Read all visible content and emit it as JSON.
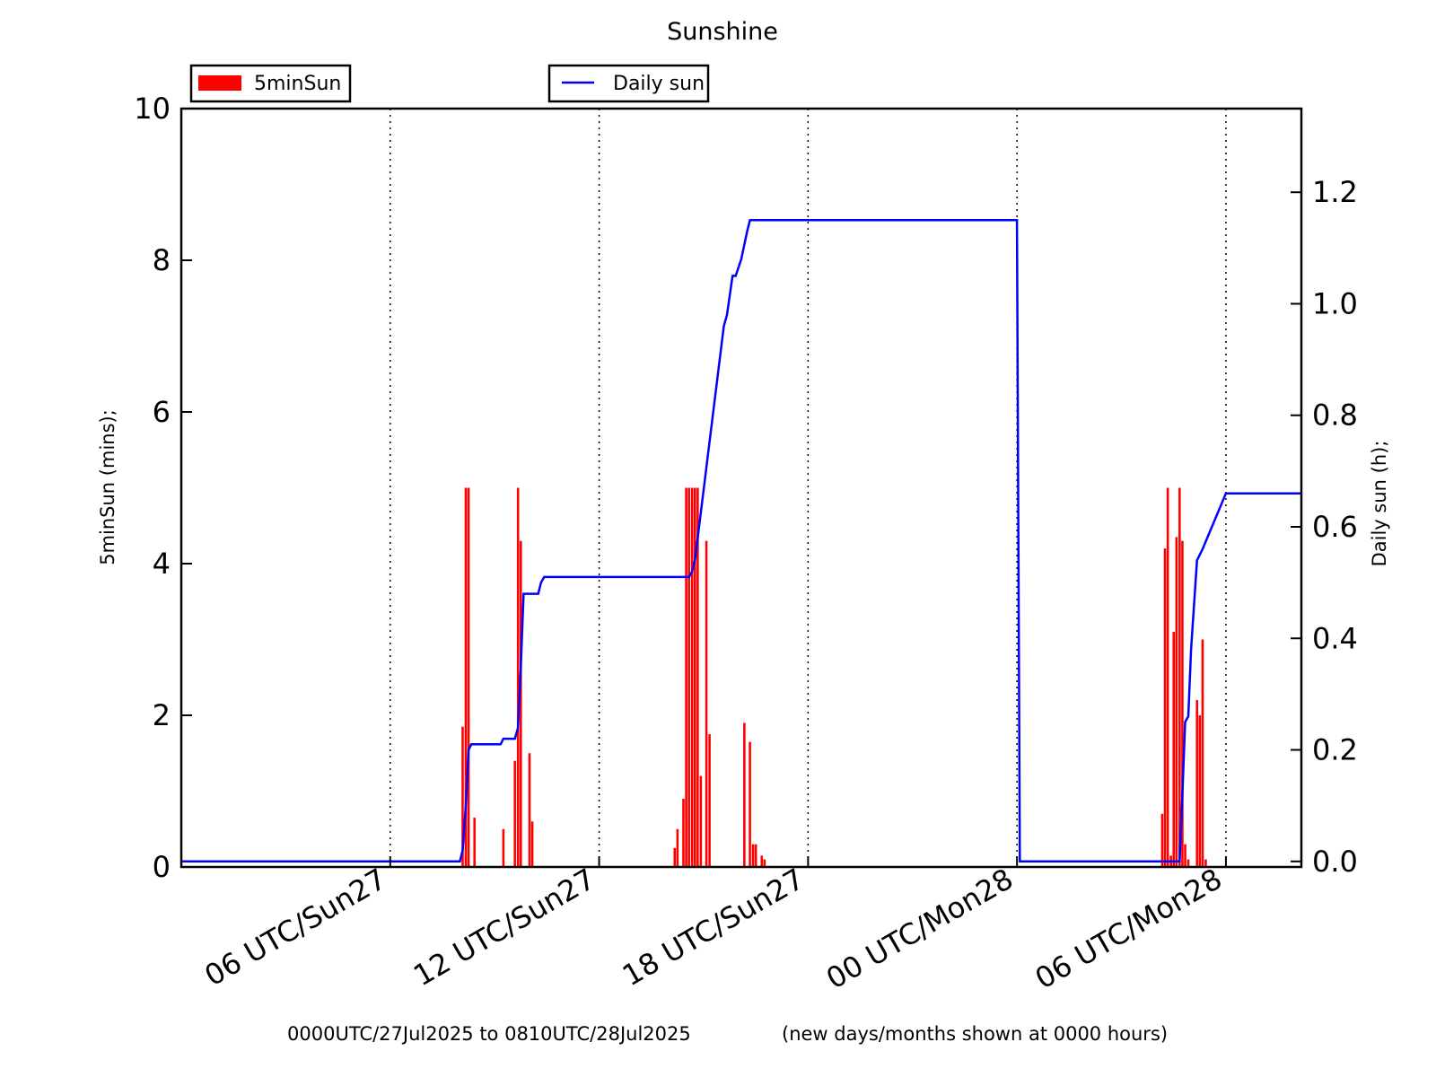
{
  "chart_data": {
    "type": "bar",
    "title": "Sunshine",
    "x_time_range": [
      "0000UTC/27Jul2025",
      "0810UTC/28Jul2025"
    ],
    "x_ticks": [
      "06 UTC/Sun27",
      "12 UTC/Sun27",
      "18 UTC/Sun27",
      "00 UTC/Mon28",
      "06 UTC/Mon28"
    ],
    "x_tick_hours": [
      6,
      12,
      18,
      24,
      30
    ],
    "xlim_hours": [
      0,
      32.1667
    ],
    "grid": "vertical-dotted",
    "footer_left": "0000UTC/27Jul2025 to 0810UTC/28Jul2025",
    "footer_right": "(new days/months shown at 0000 hours)",
    "y_left": {
      "label": "5minSun  (mins);",
      "ylim": [
        0,
        10
      ],
      "ticks": [
        "0",
        "2",
        "4",
        "6",
        "8",
        "10"
      ],
      "tick_values": [
        0,
        2,
        4,
        6,
        8,
        10
      ]
    },
    "y_right": {
      "label": "Daily sun  (h);",
      "ylim": [
        -0.01,
        1.35
      ],
      "ticks": [
        "0.0",
        "0.2",
        "0.4",
        "0.6",
        "0.8",
        "1.0",
        "1.2"
      ],
      "tick_values": [
        0,
        0.2,
        0.4,
        0.6,
        0.8,
        1.0,
        1.2
      ]
    },
    "legend": [
      {
        "name": "5minSun",
        "color": "#ff0000",
        "kind": "bar",
        "placement": "upper-left"
      },
      {
        "name": "Daily sun",
        "color": "#0000ff",
        "kind": "line",
        "placement": "upper-center"
      }
    ],
    "series": [
      {
        "name": "5minSun",
        "axis": "left",
        "type": "bar",
        "color": "#ff0000",
        "x_hours": [
          8.08,
          8.17,
          8.25,
          8.42,
          9.25,
          9.58,
          9.67,
          9.75,
          10.0,
          10.08,
          14.17,
          14.25,
          14.42,
          14.5,
          14.58,
          14.67,
          14.75,
          14.83,
          14.92,
          15.08,
          15.17,
          16.17,
          16.33,
          16.42,
          16.5,
          16.67,
          16.75,
          28.17,
          28.25,
          28.33,
          28.42,
          28.5,
          28.58,
          28.67,
          28.75,
          28.83,
          28.92,
          29.17,
          29.25,
          29.33,
          29.42
        ],
        "values": [
          1.85,
          5.0,
          5.0,
          0.65,
          0.5,
          1.4,
          5.0,
          4.3,
          1.5,
          0.6,
          0.25,
          0.5,
          0.9,
          5.0,
          5.0,
          5.0,
          5.0,
          5.0,
          1.2,
          4.3,
          1.75,
          1.9,
          1.65,
          0.3,
          0.3,
          0.15,
          0.1,
          0.7,
          4.2,
          5.0,
          0.15,
          3.1,
          4.35,
          5.0,
          4.3,
          0.3,
          0.1,
          2.2,
          2.0,
          3.0,
          0.1
        ]
      },
      {
        "name": "Daily sun",
        "axis": "right",
        "type": "line",
        "color": "#0000ff",
        "x_hours": [
          0,
          8.0,
          8.08,
          8.17,
          8.25,
          8.33,
          9.17,
          9.25,
          9.58,
          9.67,
          9.75,
          9.83,
          10.25,
          10.33,
          10.42,
          14.58,
          14.67,
          14.75,
          15.58,
          15.67,
          15.83,
          15.92,
          16.08,
          16.25,
          16.33,
          23.92,
          24.0,
          24.08,
          28.67,
          28.75,
          28.83,
          28.92,
          29.0,
          29.17,
          29.33,
          30.0,
          32.1667
        ],
        "values": [
          0.0,
          0.0,
          0.02,
          0.1,
          0.2,
          0.21,
          0.21,
          0.22,
          0.22,
          0.24,
          0.35,
          0.48,
          0.48,
          0.5,
          0.51,
          0.51,
          0.52,
          0.54,
          0.96,
          0.98,
          1.05,
          1.05,
          1.08,
          1.13,
          1.15,
          1.15,
          1.15,
          0.0,
          0.0,
          0.12,
          0.25,
          0.26,
          0.38,
          0.54,
          0.56,
          0.66,
          0.66
        ]
      }
    ]
  }
}
